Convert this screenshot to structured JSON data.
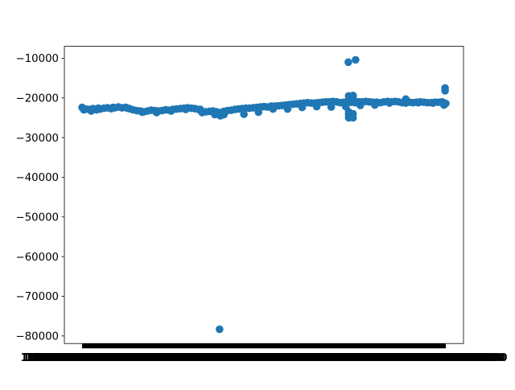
{
  "chart_data": {
    "type": "scatter",
    "title": "",
    "xlabel": "",
    "ylabel": "",
    "grid": false,
    "x_tick_labels_overlapping": true,
    "xlim": [
      0,
      100
    ],
    "ylim": [
      -81900,
      -7000
    ],
    "yticks": [
      -10000,
      -20000,
      -30000,
      -40000,
      -50000,
      -60000,
      -70000,
      -80000
    ],
    "ytick_labels": [
      "−10000",
      "−20000",
      "−30000",
      "−40000",
      "−50000",
      "−60000",
      "−70000",
      "−80000"
    ],
    "colors": {
      "marker": "#1f77b4",
      "axes": "#000000",
      "background": "#ffffff"
    },
    "series": [
      {
        "x": [
          0,
          1,
          2,
          3,
          4,
          5,
          6,
          7,
          8,
          9,
          10,
          11,
          12,
          13,
          14,
          15,
          16,
          17,
          18,
          19,
          20,
          21,
          22,
          23,
          24,
          25,
          26,
          27,
          28,
          29,
          30,
          31,
          32,
          33,
          34,
          35,
          36,
          37,
          38,
          39,
          40,
          41,
          42,
          43,
          44,
          45,
          46,
          47,
          48,
          49,
          50,
          51,
          52,
          53,
          54,
          55,
          56,
          57,
          58,
          59,
          60,
          61,
          62,
          63,
          64,
          65,
          66,
          67,
          68,
          69,
          70,
          71,
          72,
          73,
          74,
          75,
          76,
          77,
          78,
          79,
          80,
          81,
          82,
          83,
          84,
          85,
          86,
          87,
          88,
          89,
          90,
          91,
          92,
          93,
          94,
          95,
          96,
          97,
          98,
          99,
          100,
          0.5,
          2.5,
          4.5,
          8.5,
          12.5,
          16.5,
          20.5,
          24.5,
          28.5,
          32.5,
          36.5,
          38,
          38.5,
          39,
          44.5,
          48.5,
          52.5,
          56.5,
          60.5,
          64.5,
          68.5,
          72.5,
          73.3,
          73.3,
          73.3,
          73.3,
          73.3,
          74.5,
          74.5,
          74.5,
          74.5,
          76.5,
          80.5,
          84.5,
          88.5,
          89,
          92.5,
          96.5,
          99.5,
          99.8,
          99.8,
          37.8,
          73.2,
          75.2
        ],
        "y": [
          -22400,
          -22800,
          -22900,
          -22700,
          -23000,
          -22800,
          -22600,
          -22500,
          -22700,
          -22500,
          -22300,
          -22500,
          -22400,
          -22700,
          -23000,
          -23200,
          -23300,
          -23500,
          -23300,
          -23100,
          -23200,
          -23300,
          -23200,
          -23000,
          -23100,
          -22900,
          -22800,
          -22700,
          -22600,
          -22500,
          -22600,
          -22700,
          -22900,
          -23700,
          -23500,
          -23400,
          -23300,
          -23500,
          -23700,
          -23400,
          -23200,
          -23100,
          -22900,
          -22800,
          -22700,
          -22600,
          -22600,
          -22500,
          -22400,
          -22300,
          -22200,
          -22300,
          -22100,
          -22100,
          -22000,
          -21900,
          -21800,
          -21700,
          -21600,
          -21500,
          -21400,
          -21300,
          -21200,
          -21300,
          -21300,
          -21200,
          -21100,
          -21000,
          -21000,
          -20900,
          -21000,
          -21200,
          -21100,
          -21000,
          -21100,
          -21200,
          -21000,
          -21000,
          -20900,
          -21000,
          -21100,
          -21100,
          -21200,
          -21000,
          -20900,
          -21000,
          -20900,
          -21000,
          -21200,
          -21300,
          -21100,
          -21200,
          -21100,
          -21000,
          -21100,
          -21200,
          -21200,
          -21100,
          -21100,
          -21000,
          -21400,
          -23000,
          -23300,
          -22600,
          -22400,
          -22600,
          -23600,
          -23700,
          -23300,
          -22900,
          -22900,
          -24200,
          -24500,
          -24300,
          -24200,
          -24100,
          -23600,
          -22800,
          -22800,
          -22400,
          -22200,
          -22300,
          -22200,
          -19500,
          -20500,
          -24200,
          -25000,
          -23500,
          -19400,
          -20000,
          -24000,
          -25000,
          -21900,
          -21800,
          -21300,
          -21100,
          -20300,
          -21200,
          -21300,
          -21800,
          -17500,
          -18200,
          -78300,
          -11000,
          -10400
        ]
      }
    ]
  }
}
